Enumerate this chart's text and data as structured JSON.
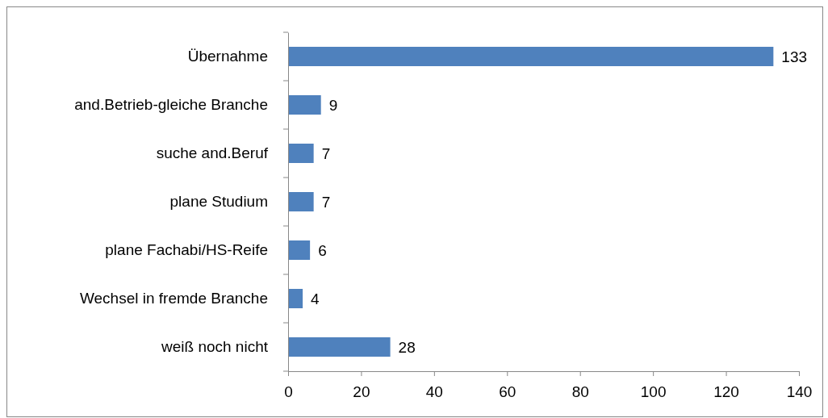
{
  "chart_data": {
    "type": "bar",
    "orientation": "horizontal",
    "categories": [
      "Übernahme",
      "and.Betrieb-gleiche Branche",
      "suche and.Beruf",
      "plane Studium",
      "plane Fachabi/HS-Reife",
      "Wechsel in fremde Branche",
      "weiß noch nicht"
    ],
    "values": [
      133,
      9,
      7,
      7,
      6,
      4,
      28
    ],
    "color": "#4f81bd",
    "data_labels": true,
    "xlim": [
      0,
      140
    ],
    "xticks": [
      0,
      20,
      40,
      60,
      80,
      100,
      120,
      140
    ]
  }
}
